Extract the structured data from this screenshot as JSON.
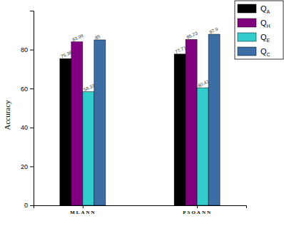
{
  "chart_data": {
    "type": "bar",
    "ylabel": "Accuracy",
    "categories": [
      "MLANN",
      "PSOANN"
    ],
    "series": [
      {
        "name": "QA",
        "color": "#000000",
        "values": [
          75.38,
          77.71
        ]
      },
      {
        "name": "QH",
        "color": "#800080",
        "values": [
          83.99,
          85.23
        ]
      },
      {
        "name": "QE",
        "color": "#33cccc",
        "values": [
          58.33,
          60.41
        ]
      },
      {
        "name": "QC",
        "color": "#3a6ea5",
        "values": [
          85,
          87.9
        ]
      }
    ],
    "ylim": [
      0,
      100
    ],
    "yticks": [
      0,
      20,
      40,
      60,
      80
    ],
    "grid": false,
    "legend": "top-right",
    "data_labels": true
  }
}
